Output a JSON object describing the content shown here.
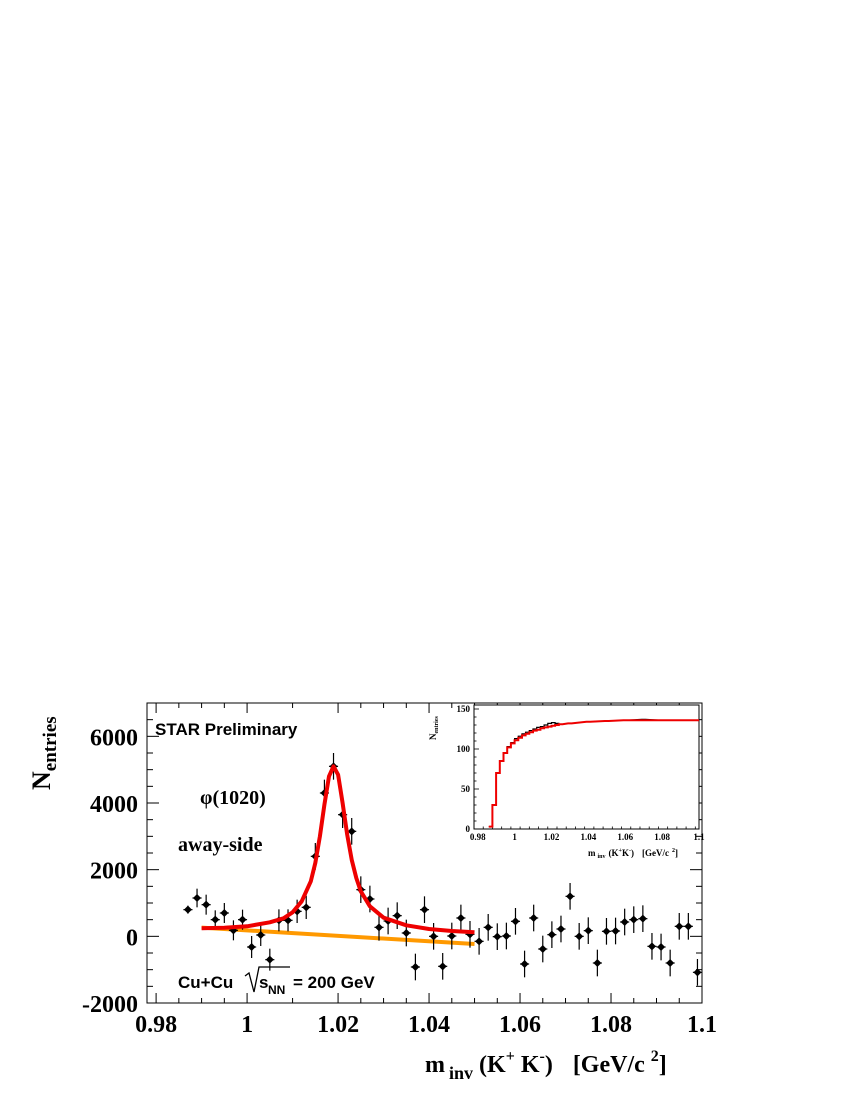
{
  "chart_data": [
    {
      "type": "scatter",
      "annotations": {
        "experiment": "STAR Preliminary",
        "particle": "φ(1020)",
        "region": "away-side",
        "system_prefix": "Cu+Cu",
        "system_sqrt": "s",
        "system_sub": "NN",
        "system_suffix": "= 200 GeV"
      },
      "ylabel": {
        "main": "N",
        "sub": "entries"
      },
      "xlabel": {
        "m": "m",
        "inv": "inv",
        "open": "(K",
        "sup1": "+",
        "k2": " K",
        "sup2": "-",
        "close": ")",
        "unit": "[GeV/c",
        "sup3": "2",
        "unit_close": "]"
      },
      "xlim": [
        0.978,
        1.1
      ],
      "ylim": [
        -2000,
        7000
      ],
      "xticks": [
        "0.98",
        "1",
        "1.02",
        "1.04",
        "1.06",
        "1.08",
        "1.1"
      ],
      "yticks": [
        "-2000",
        "0",
        "2000",
        "4000",
        "6000"
      ],
      "points": [
        {
          "x": 0.987,
          "y": 800,
          "err": 120
        },
        {
          "x": 0.989,
          "y": 1150,
          "err": 280
        },
        {
          "x": 0.991,
          "y": 950,
          "err": 300
        },
        {
          "x": 0.993,
          "y": 500,
          "err": 280
        },
        {
          "x": 0.995,
          "y": 700,
          "err": 300
        },
        {
          "x": 0.997,
          "y": 180,
          "err": 300
        },
        {
          "x": 0.999,
          "y": 500,
          "err": 300
        },
        {
          "x": 1.001,
          "y": -320,
          "err": 330
        },
        {
          "x": 1.003,
          "y": 40,
          "err": 330
        },
        {
          "x": 1.005,
          "y": -700,
          "err": 330
        },
        {
          "x": 1.007,
          "y": 480,
          "err": 330
        },
        {
          "x": 1.009,
          "y": 480,
          "err": 330
        },
        {
          "x": 1.011,
          "y": 750,
          "err": 350
        },
        {
          "x": 1.013,
          "y": 870,
          "err": 350
        },
        {
          "x": 1.015,
          "y": 2400,
          "err": 400
        },
        {
          "x": 1.017,
          "y": 4300,
          "err": 400
        },
        {
          "x": 1.019,
          "y": 5100,
          "err": 400
        },
        {
          "x": 1.021,
          "y": 3650,
          "err": 400
        },
        {
          "x": 1.023,
          "y": 3150,
          "err": 400
        },
        {
          "x": 1.025,
          "y": 1400,
          "err": 400
        },
        {
          "x": 1.027,
          "y": 1120,
          "err": 400
        },
        {
          "x": 1.029,
          "y": 270,
          "err": 400
        },
        {
          "x": 1.031,
          "y": 460,
          "err": 400
        },
        {
          "x": 1.033,
          "y": 620,
          "err": 400
        },
        {
          "x": 1.035,
          "y": 100,
          "err": 400
        },
        {
          "x": 1.037,
          "y": -920,
          "err": 400
        },
        {
          "x": 1.039,
          "y": 800,
          "err": 400
        },
        {
          "x": 1.041,
          "y": 0,
          "err": 400
        },
        {
          "x": 1.043,
          "y": -900,
          "err": 400
        },
        {
          "x": 1.045,
          "y": 10,
          "err": 400
        },
        {
          "x": 1.047,
          "y": 550,
          "err": 400
        },
        {
          "x": 1.049,
          "y": 60,
          "err": 400
        },
        {
          "x": 1.051,
          "y": -150,
          "err": 400
        },
        {
          "x": 1.053,
          "y": 270,
          "err": 400
        },
        {
          "x": 1.055,
          "y": -10,
          "err": 400
        },
        {
          "x": 1.057,
          "y": 10,
          "err": 400
        },
        {
          "x": 1.059,
          "y": 450,
          "err": 400
        },
        {
          "x": 1.061,
          "y": -830,
          "err": 400
        },
        {
          "x": 1.063,
          "y": 550,
          "err": 400
        },
        {
          "x": 1.065,
          "y": -380,
          "err": 400
        },
        {
          "x": 1.067,
          "y": 50,
          "err": 400
        },
        {
          "x": 1.069,
          "y": 220,
          "err": 400
        },
        {
          "x": 1.071,
          "y": 1200,
          "err": 400
        },
        {
          "x": 1.073,
          "y": 0,
          "err": 400
        },
        {
          "x": 1.075,
          "y": 170,
          "err": 400
        },
        {
          "x": 1.077,
          "y": -800,
          "err": 400
        },
        {
          "x": 1.079,
          "y": 150,
          "err": 400
        },
        {
          "x": 1.081,
          "y": 160,
          "err": 400
        },
        {
          "x": 1.083,
          "y": 430,
          "err": 400
        },
        {
          "x": 1.085,
          "y": 500,
          "err": 400
        },
        {
          "x": 1.087,
          "y": 530,
          "err": 400
        },
        {
          "x": 1.089,
          "y": -300,
          "err": 400
        },
        {
          "x": 1.091,
          "y": -320,
          "err": 400
        },
        {
          "x": 1.093,
          "y": -800,
          "err": 400
        },
        {
          "x": 1.095,
          "y": 300,
          "err": 400
        },
        {
          "x": 1.097,
          "y": 300,
          "err": 400
        },
        {
          "x": 1.099,
          "y": -1080,
          "err": 400
        }
      ],
      "fit_total": {
        "color": "#ee0000",
        "x": [
          0.99,
          0.995,
          1.0,
          1.005,
          1.008,
          1.01,
          1.012,
          1.014,
          1.015,
          1.016,
          1.017,
          1.018,
          1.019,
          1.02,
          1.021,
          1.022,
          1.023,
          1.024,
          1.025,
          1.027,
          1.03,
          1.035,
          1.04,
          1.045,
          1.05
        ],
        "y": [
          240,
          260,
          300,
          420,
          540,
          720,
          1050,
          1650,
          2200,
          3000,
          3950,
          4800,
          5100,
          4850,
          4000,
          3050,
          2300,
          1750,
          1350,
          900,
          560,
          330,
          220,
          160,
          120
        ]
      },
      "fit_background": {
        "color": "#ff9900",
        "x": [
          0.99,
          1.05
        ],
        "y": [
          260,
          -230
        ]
      }
    },
    {
      "type": "line",
      "role": "inset",
      "ylabel": {
        "main": "N",
        "sub": "entries"
      },
      "xlabel": {
        "m": "m",
        "inv": "inv",
        "mid": "(K",
        "sup1": "+",
        "k2": "K",
        "sup2": "-",
        "close": ")",
        "unit": "[GeV/c",
        "sup3": "2",
        "unit_close": "]"
      },
      "xlim": [
        0.978,
        1.1
      ],
      "ylim": [
        0,
        155
      ],
      "xticks": [
        "0.98",
        "1",
        "1.02",
        "1.04",
        "1.06",
        "1.08",
        "1.1"
      ],
      "yticks": [
        "0",
        "50",
        "100",
        "150"
      ],
      "series": [
        {
          "color": "#000000",
          "x": [
            0.987,
            0.989,
            0.991,
            0.993,
            0.995,
            0.997,
            0.999,
            1.001,
            1.003,
            1.005,
            1.007,
            1.009,
            1.011,
            1.013,
            1.015,
            1.017,
            1.019,
            1.021,
            1.023,
            1.025,
            1.03,
            1.04,
            1.05,
            1.06,
            1.07,
            1.08,
            1.09,
            1.099
          ],
          "y": [
            3,
            30,
            70,
            85,
            95,
            103,
            108,
            113,
            116,
            119,
            121,
            123,
            125,
            127,
            128,
            130,
            132,
            133,
            132,
            131,
            132,
            134,
            135,
            136,
            137,
            136,
            136,
            136
          ]
        },
        {
          "color": "#ee0000",
          "x": [
            0.987,
            0.989,
            0.991,
            0.993,
            0.995,
            0.997,
            0.999,
            1.001,
            1.003,
            1.005,
            1.007,
            1.009,
            1.011,
            1.013,
            1.015,
            1.017,
            1.019,
            1.021,
            1.023,
            1.025,
            1.03,
            1.04,
            1.05,
            1.06,
            1.07,
            1.08,
            1.09,
            1.099
          ],
          "y": [
            3,
            30,
            70,
            85,
            95,
            102,
            107,
            111,
            114,
            117,
            119,
            121,
            123,
            124,
            126,
            127,
            128,
            129,
            130,
            131,
            132,
            134,
            135,
            136,
            136,
            136,
            136,
            136
          ]
        }
      ]
    }
  ]
}
